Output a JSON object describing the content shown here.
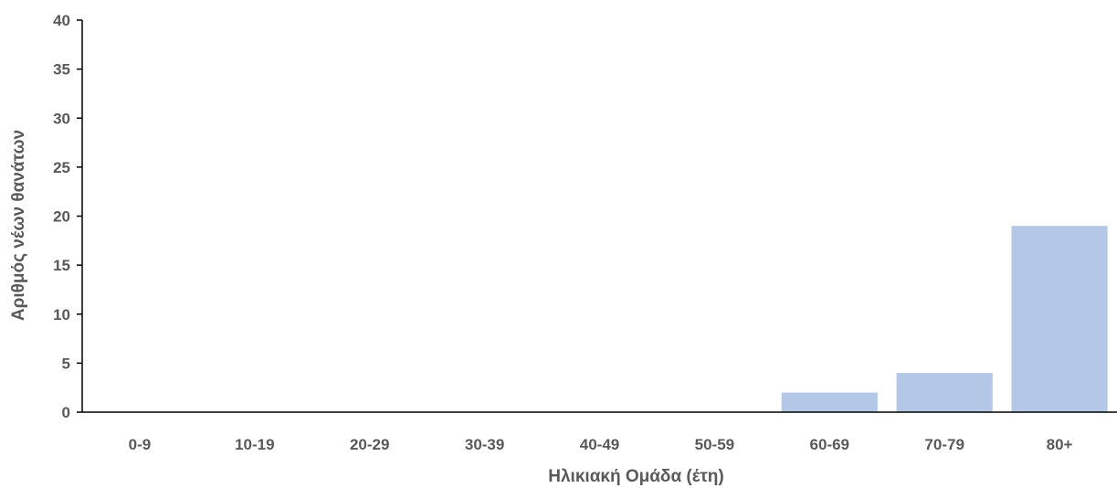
{
  "chart_data": {
    "type": "bar",
    "categories": [
      "0-9",
      "10-19",
      "20-29",
      "30-39",
      "40-49",
      "50-59",
      "60-69",
      "70-79",
      "80+"
    ],
    "values": [
      0,
      0,
      0,
      0,
      0,
      0,
      2,
      4,
      19
    ],
    "title": "",
    "xlabel": "Ηλικιακή Ομάδα (έτη)",
    "ylabel": "Αριθμός νέων θανάτων",
    "ylim": [
      0,
      40
    ],
    "yticks": [
      0,
      5,
      10,
      15,
      20,
      25,
      30,
      35,
      40
    ],
    "grid": false,
    "legend": "none",
    "colors": {
      "bar": "#b4c7e7",
      "axis": "#000000",
      "text": "#595959"
    }
  }
}
